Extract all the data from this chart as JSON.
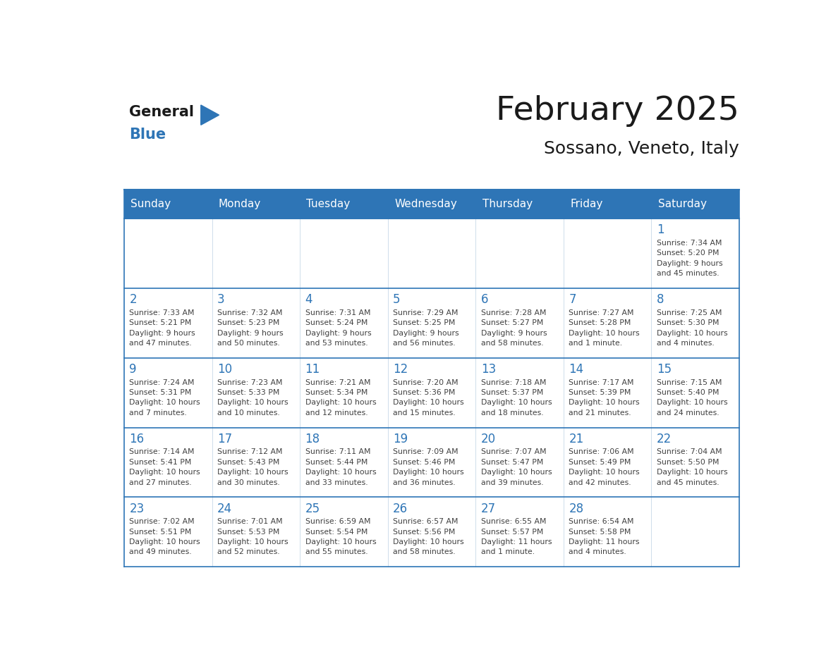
{
  "title": "February 2025",
  "subtitle": "Sossano, Veneto, Italy",
  "header_bg": "#2E75B6",
  "header_text_color": "#FFFFFF",
  "cell_border_color": "#2E75B6",
  "day_number_color": "#2E75B6",
  "cell_text_color": "#404040",
  "background_color": "#FFFFFF",
  "days_of_week": [
    "Sunday",
    "Monday",
    "Tuesday",
    "Wednesday",
    "Thursday",
    "Friday",
    "Saturday"
  ],
  "weeks": [
    [
      {
        "day": null,
        "text": ""
      },
      {
        "day": null,
        "text": ""
      },
      {
        "day": null,
        "text": ""
      },
      {
        "day": null,
        "text": ""
      },
      {
        "day": null,
        "text": ""
      },
      {
        "day": null,
        "text": ""
      },
      {
        "day": 1,
        "text": "Sunrise: 7:34 AM\nSunset: 5:20 PM\nDaylight: 9 hours\nand 45 minutes."
      }
    ],
    [
      {
        "day": 2,
        "text": "Sunrise: 7:33 AM\nSunset: 5:21 PM\nDaylight: 9 hours\nand 47 minutes."
      },
      {
        "day": 3,
        "text": "Sunrise: 7:32 AM\nSunset: 5:23 PM\nDaylight: 9 hours\nand 50 minutes."
      },
      {
        "day": 4,
        "text": "Sunrise: 7:31 AM\nSunset: 5:24 PM\nDaylight: 9 hours\nand 53 minutes."
      },
      {
        "day": 5,
        "text": "Sunrise: 7:29 AM\nSunset: 5:25 PM\nDaylight: 9 hours\nand 56 minutes."
      },
      {
        "day": 6,
        "text": "Sunrise: 7:28 AM\nSunset: 5:27 PM\nDaylight: 9 hours\nand 58 minutes."
      },
      {
        "day": 7,
        "text": "Sunrise: 7:27 AM\nSunset: 5:28 PM\nDaylight: 10 hours\nand 1 minute."
      },
      {
        "day": 8,
        "text": "Sunrise: 7:25 AM\nSunset: 5:30 PM\nDaylight: 10 hours\nand 4 minutes."
      }
    ],
    [
      {
        "day": 9,
        "text": "Sunrise: 7:24 AM\nSunset: 5:31 PM\nDaylight: 10 hours\nand 7 minutes."
      },
      {
        "day": 10,
        "text": "Sunrise: 7:23 AM\nSunset: 5:33 PM\nDaylight: 10 hours\nand 10 minutes."
      },
      {
        "day": 11,
        "text": "Sunrise: 7:21 AM\nSunset: 5:34 PM\nDaylight: 10 hours\nand 12 minutes."
      },
      {
        "day": 12,
        "text": "Sunrise: 7:20 AM\nSunset: 5:36 PM\nDaylight: 10 hours\nand 15 minutes."
      },
      {
        "day": 13,
        "text": "Sunrise: 7:18 AM\nSunset: 5:37 PM\nDaylight: 10 hours\nand 18 minutes."
      },
      {
        "day": 14,
        "text": "Sunrise: 7:17 AM\nSunset: 5:39 PM\nDaylight: 10 hours\nand 21 minutes."
      },
      {
        "day": 15,
        "text": "Sunrise: 7:15 AM\nSunset: 5:40 PM\nDaylight: 10 hours\nand 24 minutes."
      }
    ],
    [
      {
        "day": 16,
        "text": "Sunrise: 7:14 AM\nSunset: 5:41 PM\nDaylight: 10 hours\nand 27 minutes."
      },
      {
        "day": 17,
        "text": "Sunrise: 7:12 AM\nSunset: 5:43 PM\nDaylight: 10 hours\nand 30 minutes."
      },
      {
        "day": 18,
        "text": "Sunrise: 7:11 AM\nSunset: 5:44 PM\nDaylight: 10 hours\nand 33 minutes."
      },
      {
        "day": 19,
        "text": "Sunrise: 7:09 AM\nSunset: 5:46 PM\nDaylight: 10 hours\nand 36 minutes."
      },
      {
        "day": 20,
        "text": "Sunrise: 7:07 AM\nSunset: 5:47 PM\nDaylight: 10 hours\nand 39 minutes."
      },
      {
        "day": 21,
        "text": "Sunrise: 7:06 AM\nSunset: 5:49 PM\nDaylight: 10 hours\nand 42 minutes."
      },
      {
        "day": 22,
        "text": "Sunrise: 7:04 AM\nSunset: 5:50 PM\nDaylight: 10 hours\nand 45 minutes."
      }
    ],
    [
      {
        "day": 23,
        "text": "Sunrise: 7:02 AM\nSunset: 5:51 PM\nDaylight: 10 hours\nand 49 minutes."
      },
      {
        "day": 24,
        "text": "Sunrise: 7:01 AM\nSunset: 5:53 PM\nDaylight: 10 hours\nand 52 minutes."
      },
      {
        "day": 25,
        "text": "Sunrise: 6:59 AM\nSunset: 5:54 PM\nDaylight: 10 hours\nand 55 minutes."
      },
      {
        "day": 26,
        "text": "Sunrise: 6:57 AM\nSunset: 5:56 PM\nDaylight: 10 hours\nand 58 minutes."
      },
      {
        "day": 27,
        "text": "Sunrise: 6:55 AM\nSunset: 5:57 PM\nDaylight: 11 hours\nand 1 minute."
      },
      {
        "day": 28,
        "text": "Sunrise: 6:54 AM\nSunset: 5:58 PM\nDaylight: 11 hours\nand 4 minutes."
      },
      {
        "day": null,
        "text": ""
      }
    ]
  ]
}
